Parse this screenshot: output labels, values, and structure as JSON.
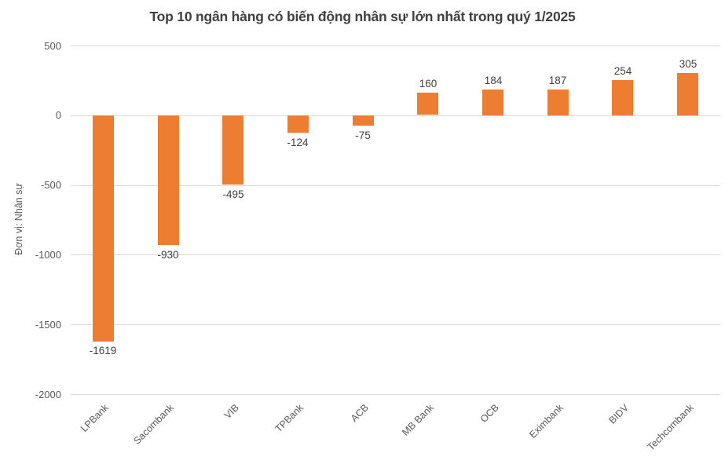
{
  "chart_data": {
    "type": "bar",
    "title": "Top 10 ngân hàng có biến động nhân sự lớn nhất trong quý 1/2025",
    "ylabel": "Đơn vị: Nhân sự",
    "xlabel": "",
    "categories": [
      "LPBank",
      "Sacombank",
      "VIB",
      "TPBank",
      "ACB",
      "MB Bank",
      "OCB",
      "Eximbank",
      "BIDV",
      "Techcombank"
    ],
    "values": [
      -1619,
      -930,
      -495,
      -124,
      -75,
      160,
      184,
      187,
      254,
      305
    ],
    "data_labels": [
      "-1619",
      "-930",
      "-495",
      "-124",
      "-75",
      "160",
      "184",
      "187",
      "254",
      "305"
    ],
    "ylim": [
      -2000,
      500
    ],
    "yticks": [
      500,
      0,
      -500,
      -1000,
      -1500,
      -2000
    ],
    "grid": true,
    "legend": "none",
    "colors": {
      "bar": "#ED7D31",
      "gridline": "#D9D9D9",
      "title": "#404040",
      "data_label": "#404040",
      "tick_label": "#595959",
      "axis_title": "#595959",
      "background": "#FFFFFF"
    }
  }
}
